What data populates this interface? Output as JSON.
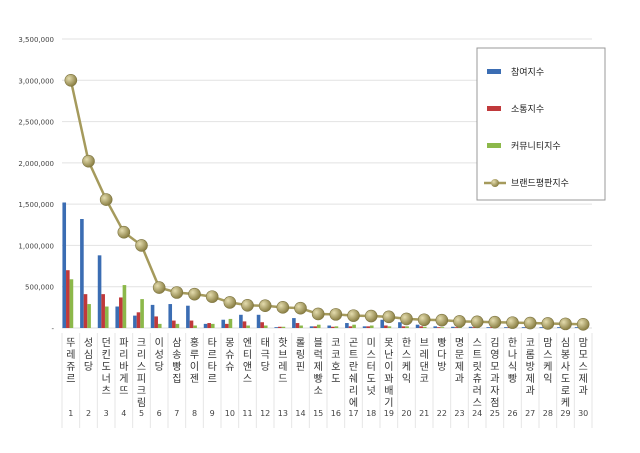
{
  "chart_data": {
    "type": "bar",
    "title": "",
    "xlabel": "",
    "ylabel": "",
    "ylim": [
      0,
      3500000
    ],
    "yticks": [
      "-",
      "500,000",
      "1,000,000",
      "1,500,000",
      "2,000,000",
      "2,500,000",
      "3,000,000",
      "3,500,000"
    ],
    "grid": true,
    "legend_position": "top-right",
    "ranks": [
      "1",
      "2",
      "3",
      "4",
      "5",
      "6",
      "7",
      "8",
      "9",
      "10",
      "11",
      "12",
      "13",
      "14",
      "15",
      "16",
      "17",
      "18",
      "19",
      "20",
      "21",
      "22",
      "23",
      "24",
      "25",
      "26",
      "27",
      "28",
      "29",
      "30"
    ],
    "categories": [
      "뚜레쥬르",
      "성심당",
      "던킨도너츠",
      "파리바게뜨",
      "크리스피크림",
      "이성당",
      "삼송빵집",
      "홍루이젠",
      "타르타르",
      "몽슈슈",
      "엔티앤스",
      "태극당",
      "핫브레드",
      "롤링핀",
      "블럭제빵소",
      "코코호도",
      "곤트란쉐리에",
      "미스터도넛",
      "못난이꽈배기",
      "한스케익",
      "브레댄코",
      "빵다방",
      "명문제과",
      "스트릿츄러스",
      "김영모과자점",
      "한나식빵",
      "코롬방제과",
      "맘스케익",
      "심봉사도로케",
      "맘모스제과"
    ],
    "series": [
      {
        "name": "참여지수",
        "type": "bar",
        "color": "#3b6db3",
        "values": [
          1520000,
          1320000,
          880000,
          260000,
          150000,
          280000,
          290000,
          270000,
          50000,
          100000,
          160000,
          160000,
          10000,
          120000,
          20000,
          30000,
          60000,
          20000,
          100000,
          70000,
          40000,
          20000,
          15000,
          15000,
          10000,
          10000,
          10000,
          10000,
          10000,
          10000
        ]
      },
      {
        "name": "소통지수",
        "type": "bar",
        "color": "#c0393b",
        "values": [
          700000,
          410000,
          410000,
          370000,
          190000,
          140000,
          90000,
          90000,
          60000,
          50000,
          80000,
          70000,
          15000,
          60000,
          20000,
          15000,
          20000,
          20000,
          30000,
          20000,
          20000,
          10000,
          10000,
          10000,
          10000,
          10000,
          10000,
          10000,
          10000,
          10000
        ]
      },
      {
        "name": "커뮤니티지수",
        "type": "bar",
        "color": "#8cb84a",
        "values": [
          590000,
          290000,
          260000,
          520000,
          350000,
          50000,
          50000,
          30000,
          50000,
          110000,
          30000,
          30000,
          15000,
          30000,
          40000,
          20000,
          40000,
          30000,
          20000,
          20000,
          15000,
          10000,
          10000,
          15000,
          10000,
          10000,
          10000,
          10000,
          10000,
          10000
        ]
      },
      {
        "name": "브랜드평판지수",
        "type": "line",
        "color": "#a59a5c",
        "values": [
          3000000,
          2020000,
          1555000,
          1160000,
          1000000,
          490000,
          430000,
          410000,
          380000,
          310000,
          275000,
          270000,
          250000,
          240000,
          170000,
          165000,
          150000,
          145000,
          135000,
          110000,
          100000,
          95000,
          80000,
          75000,
          70000,
          65000,
          60000,
          55000,
          50000,
          45000
        ]
      }
    ]
  }
}
